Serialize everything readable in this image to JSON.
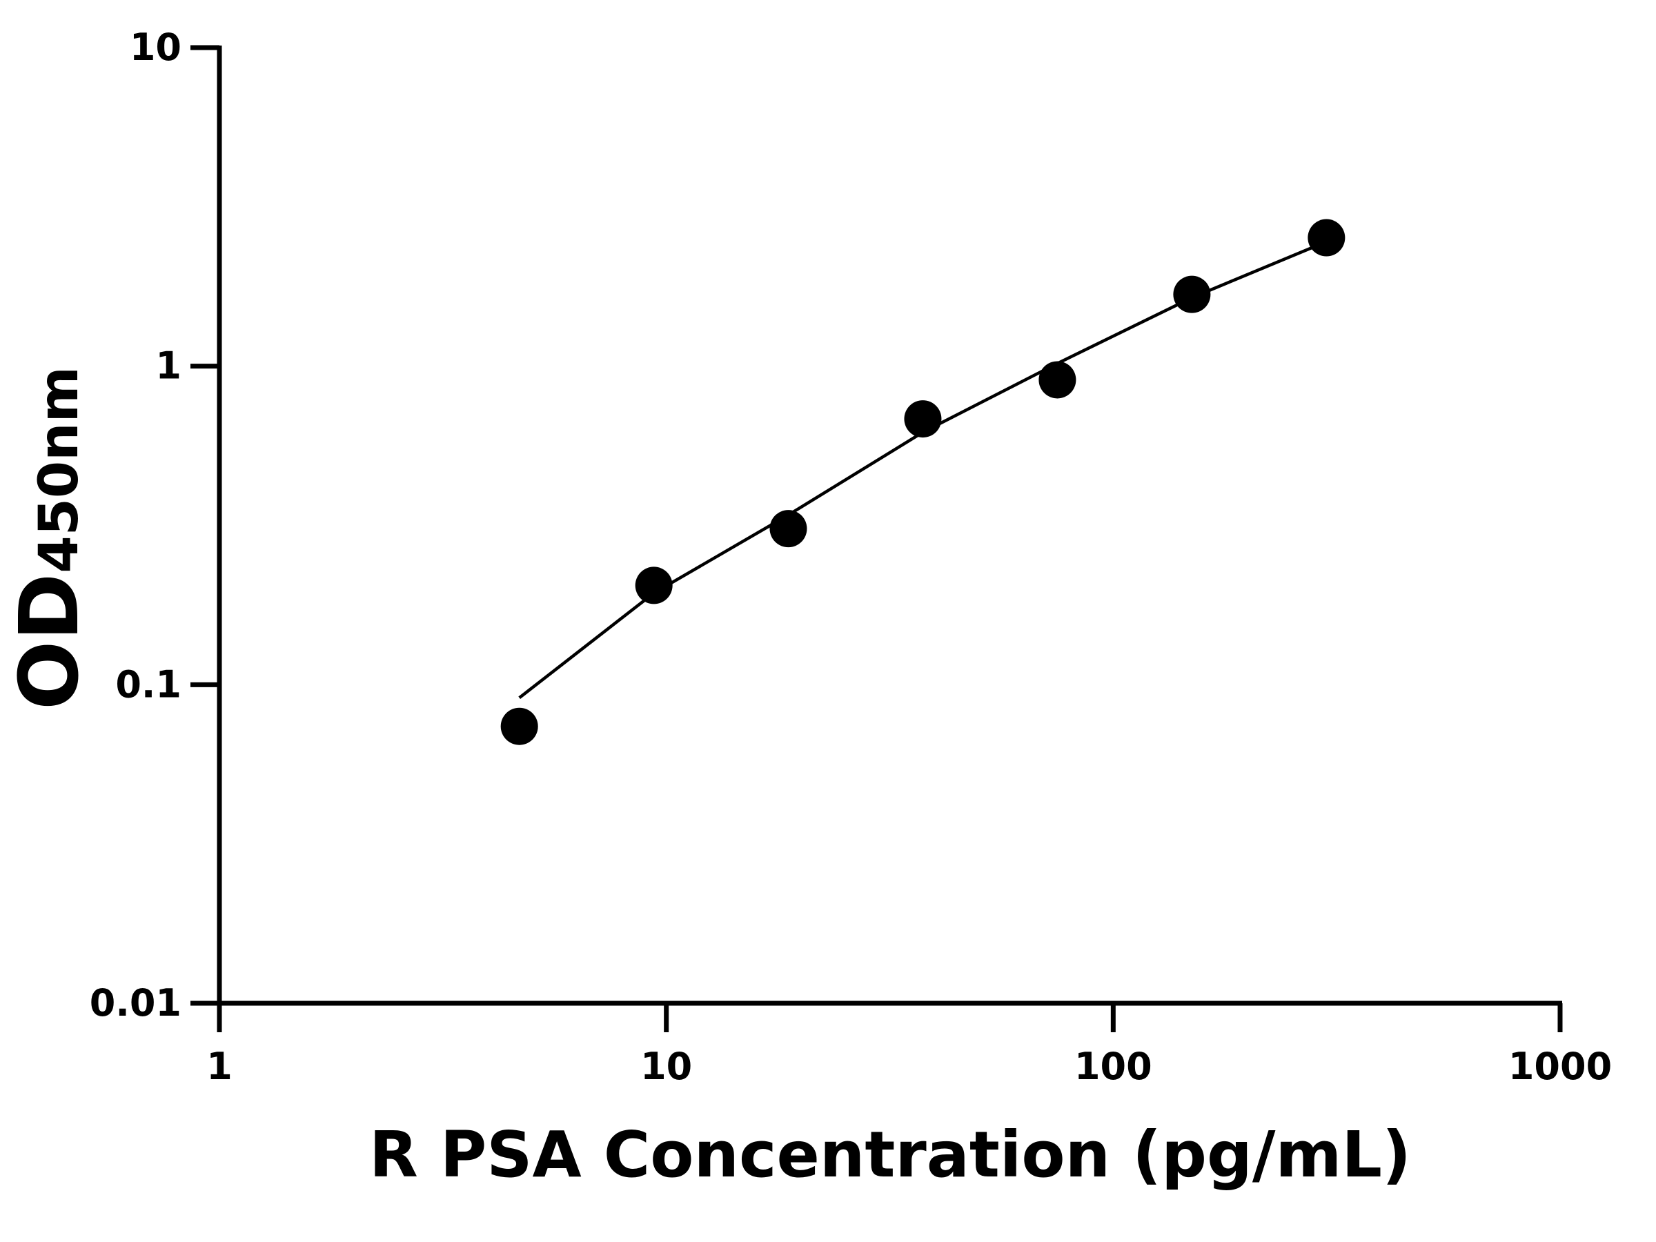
{
  "chart_data": {
    "type": "scatter",
    "x_label": "R PSA Concentration (pg/mL)",
    "y_label": "OD",
    "y_label_sub": "450nm",
    "x": [
      4.69,
      9.38,
      18.75,
      37.5,
      75,
      150,
      300
    ],
    "series": [
      {
        "color": "#000000",
        "marker": "circle",
        "values": [
          0.074,
          0.205,
          0.309,
          0.683,
          0.906,
          1.68,
          2.53
        ]
      },
      {
        "color": "#000000",
        "marker": "line",
        "values": [
          0.091,
          0.194,
          0.341,
          0.62,
          1.02,
          1.64,
          2.46
        ]
      }
    ],
    "xlog": true,
    "ylog": true,
    "xlim": [
      1,
      1000
    ],
    "xticks": [
      1,
      10,
      100,
      1000
    ],
    "ylim": [
      0.01,
      10
    ],
    "yticks": [
      0.01,
      0.1,
      1,
      10
    ]
  }
}
